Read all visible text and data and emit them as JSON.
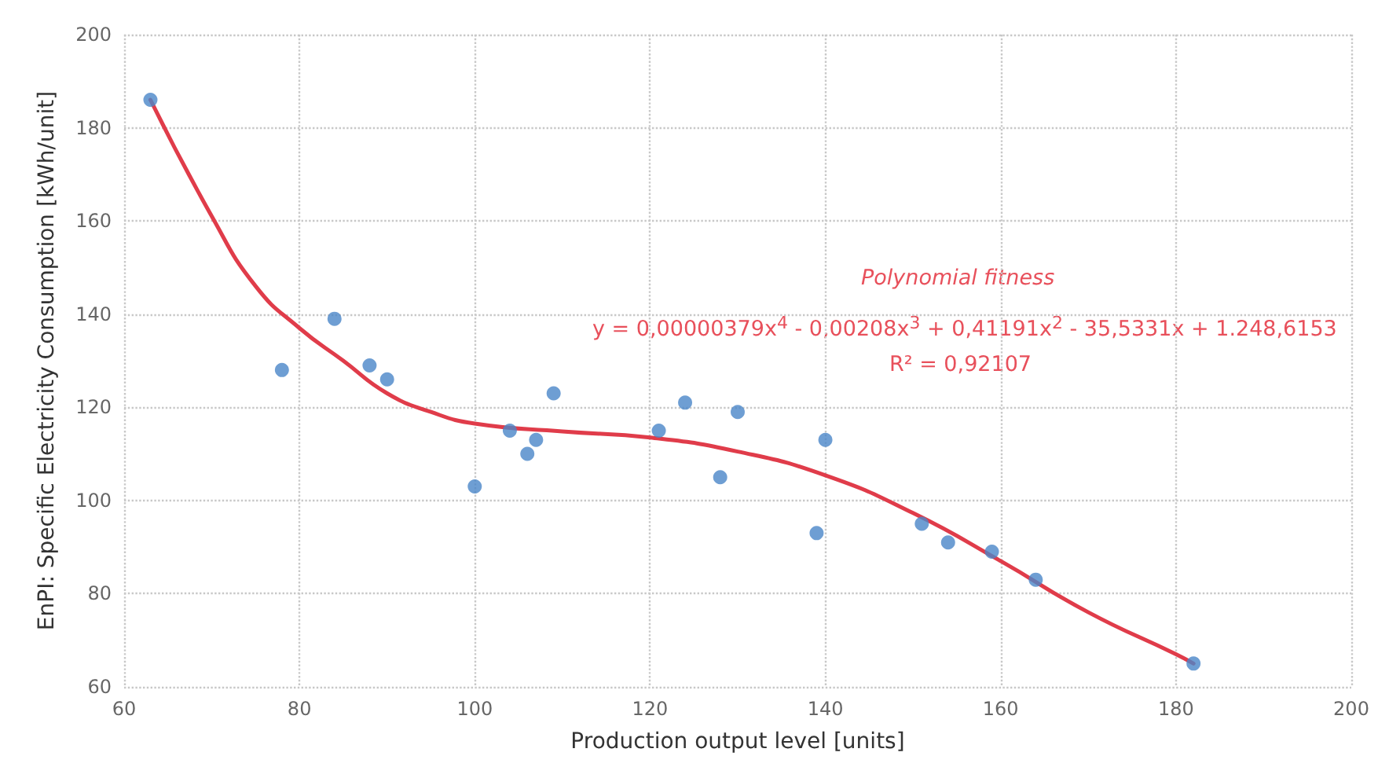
{
  "chart_data": {
    "type": "scatter",
    "xlabel": "Production output level [units]",
    "ylabel": "EnPI: Specific Electricity Consumption [kWh/unit]",
    "annotations": [
      "Polynomial fitness",
      "y = 0,00000379x$^{4}$ - 0,00208x$^{3}$ + 0,41191x$^{2}$ - 35,5331x + 1.248,6153",
      "R² = 0,92107"
    ],
    "series": [
      {
        "marker": "circle",
        "color": "#4a86c8",
        "x": [
          63,
          78,
          84,
          88,
          90,
          100,
          104,
          106,
          107,
          109,
          121,
          124,
          128,
          130,
          139,
          140,
          151,
          154,
          159,
          164,
          182
        ],
        "values": [
          186,
          128,
          139,
          129,
          126,
          103,
          115,
          110,
          113,
          123,
          115,
          121,
          105,
          119,
          93,
          113,
          95,
          91,
          89,
          83,
          65
        ]
      },
      {
        "type": "line",
        "marker": "none",
        "color": "#e03c4a",
        "x": [
          63,
          70,
          75,
          80,
          85,
          90,
          95,
          100,
          110,
          120,
          130,
          140,
          150,
          160,
          170,
          180,
          182
        ],
        "values": [
          186,
          161,
          146,
          137,
          130,
          123,
          119,
          116.5,
          114.8,
          113.5,
          110.5,
          105.4,
          97.3,
          87,
          76,
          67,
          65
        ]
      }
    ],
    "xlim": [
      60,
      200
    ],
    "xticks": [
      60,
      80,
      100,
      120,
      140,
      160,
      180,
      200
    ],
    "ylim": [
      60,
      200
    ],
    "yticks": [
      60,
      80,
      100,
      120,
      140,
      160,
      180,
      200
    ],
    "grid": true,
    "line_style": "solid"
  }
}
